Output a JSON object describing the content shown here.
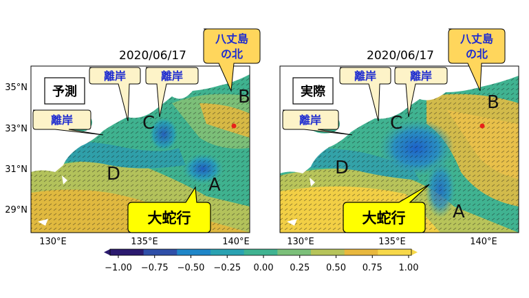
{
  "panels": [
    {
      "id": "forecast",
      "date": "2020/06/17",
      "tag": "予測",
      "callouts": {
        "kishi_west": "離岸",
        "kishi_mid": "離岸",
        "kishi_east": "離岸",
        "hachijo": [
          "八丈島",
          "の北"
        ],
        "dakou": "大蛇行"
      },
      "letters": {
        "A": "A",
        "B": "B",
        "C": "C",
        "D": "D"
      }
    },
    {
      "id": "actual",
      "date": "2020/06/17",
      "tag": "実際",
      "callouts": {
        "kishi_west": "離岸",
        "kishi_mid": "離岸",
        "kishi_east": "離岸",
        "hachijo": [
          "八丈島",
          "の北"
        ],
        "dakou": "大蛇行"
      },
      "letters": {
        "A": "A",
        "B": "B",
        "C": "C",
        "D": "D"
      }
    }
  ],
  "axes": {
    "lat_ticks": [
      "35°N",
      "33°N",
      "31°N",
      "29°N"
    ],
    "lon_ticks": [
      "130°E",
      "135°E",
      "140°E"
    ]
  },
  "colorbar": {
    "ticks": [
      "−1.00",
      "−0.75",
      "−0.50",
      "−0.25",
      "0.00",
      "0.25",
      "0.50",
      "0.75",
      "1.00"
    ],
    "colors": [
      "#2b1a6e",
      "#2f4fa8",
      "#1f86c8",
      "#2aa2b2",
      "#40b391",
      "#7cc07a",
      "#b6c45a",
      "#e8b83e",
      "#f7d84a"
    ]
  },
  "style": {
    "callout_fill": "#fdf3c8",
    "callout_text": "#1d2bd0",
    "dakou_fill": "#ffff00",
    "hachijo_fill": "#ffd65c",
    "island_fill": "#ffffff",
    "marker": "#e8201a"
  }
}
